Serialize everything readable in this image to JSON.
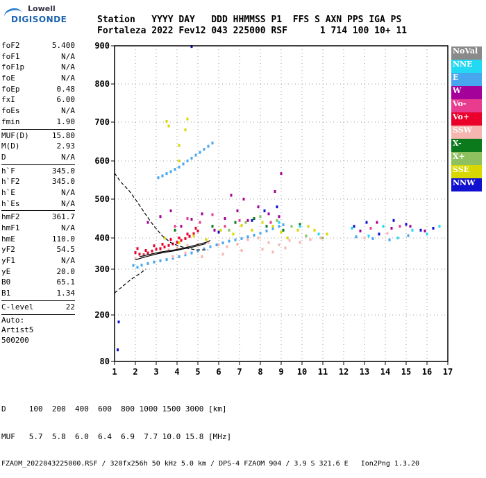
{
  "logo": {
    "top": "Lowell",
    "main": "DIGISONDE"
  },
  "header": {
    "labels": "Station   YYYY DAY   DDD HHMMSS P1  FFS S AXN PPS IGA PS",
    "values": "Fortaleza 2022 Fev12 043 225000 RSF      1 714 100 10+ 11"
  },
  "params": [
    {
      "label": "foF2",
      "value": "5.400"
    },
    {
      "label": "foF1",
      "value": "N/A"
    },
    {
      "label": "foF1p",
      "value": "N/A"
    },
    {
      "label": "foE",
      "value": "N/A"
    },
    {
      "label": "foEp",
      "value": "0.48"
    },
    {
      "label": "fxI",
      "value": "6.00"
    },
    {
      "label": "foEs",
      "value": "N/A"
    },
    {
      "label": "fmin",
      "value": "1.90"
    },
    {
      "sep": true
    },
    {
      "label": "MUF(D)",
      "value": "15.80"
    },
    {
      "label": "M(D)",
      "value": "2.93"
    },
    {
      "label": "D",
      "value": "N/A"
    },
    {
      "sep": true
    },
    {
      "label": "h`F",
      "value": "345.0"
    },
    {
      "label": "h`F2",
      "value": "345.0"
    },
    {
      "label": "h`E",
      "value": "N/A"
    },
    {
      "label": "h`Es",
      "value": "N/A"
    },
    {
      "sep": true
    },
    {
      "label": "hmF2",
      "value": "361.7"
    },
    {
      "label": "hmF1",
      "value": "N/A"
    },
    {
      "label": "hmE",
      "value": "110.0"
    },
    {
      "label": "yF2",
      "value": "54.5"
    },
    {
      "label": "yF1",
      "value": "N/A"
    },
    {
      "label": "yE",
      "value": "20.0"
    },
    {
      "label": "B0",
      "value": "65.1"
    },
    {
      "label": "B1",
      "value": "1.34"
    },
    {
      "sep": true
    },
    {
      "label": "C-level",
      "value": "22"
    },
    {
      "sep": true
    },
    {
      "free": "Auto:"
    },
    {
      "free": "Artist5"
    },
    {
      "free": "500200"
    }
  ],
  "legend": [
    {
      "label": "NoVal",
      "color": "#8a8a8a"
    },
    {
      "label": "NNE",
      "color": "#22d8f2"
    },
    {
      "label": "E",
      "color": "#47a6ee"
    },
    {
      "label": "W",
      "color": "#a4009a"
    },
    {
      "label": "Vo-",
      "color": "#e83c8e"
    },
    {
      "label": "Vo+",
      "color": "#ea002a"
    },
    {
      "label": "SSW",
      "color": "#f5b5b0"
    },
    {
      "label": "X-",
      "color": "#0a7a1c"
    },
    {
      "label": "X+",
      "color": "#8ec060"
    },
    {
      "label": "SSE",
      "color": "#d8d800"
    },
    {
      "label": "NNW",
      "color": "#1010d0"
    }
  ],
  "footer": {
    "d_row": "D     100  200  400  600  800 1000 1500 3000 [km]",
    "muf_row": "MUF   5.7  5.8  6.0  6.4  6.9  7.7 10.0 15.8 [MHz]",
    "file_row": "FZAOM_2022043225000.RSF / 320fx256h 50 kHz 5.0 km / DPS-4 FZAOM 904 / 3.9 S 321.6 E   Ion2Png 1.3.20"
  },
  "chart_data": {
    "type": "scatter",
    "x_ticks": [
      "1",
      "2",
      "3",
      "4",
      "5",
      "6",
      "7",
      "8",
      "9",
      "10",
      "11",
      "12",
      "13",
      "14",
      "15",
      "16",
      "17"
    ],
    "y_ticks": [
      "80",
      "200",
      "300",
      "400",
      "500",
      "600",
      "700",
      "800",
      "900"
    ],
    "xlim": [
      1,
      17
    ],
    "ylim": [
      80,
      900
    ],
    "grid": "dotted",
    "legend_position": "right",
    "series": [
      {
        "name": "E",
        "color": "#47a6ee",
        "points": [
          [
            1.9,
            312
          ],
          [
            2.1,
            306
          ],
          [
            2.3,
            313
          ],
          [
            2.6,
            318
          ],
          [
            2.9,
            323
          ],
          [
            3.2,
            327
          ],
          [
            3.5,
            331
          ],
          [
            3.8,
            335
          ],
          [
            4.1,
            340
          ],
          [
            4.4,
            346
          ],
          [
            4.7,
            352
          ],
          [
            5.0,
            358
          ],
          [
            5.3,
            365
          ],
          [
            5.6,
            372
          ],
          [
            5.9,
            378
          ],
          [
            6.2,
            384
          ],
          [
            6.5,
            390
          ],
          [
            6.8,
            394
          ],
          [
            7.1,
            398
          ],
          [
            7.4,
            403
          ],
          [
            7.7,
            407
          ],
          [
            8.0,
            412
          ],
          [
            8.3,
            418
          ],
          [
            8.6,
            424
          ],
          [
            8.9,
            430
          ],
          [
            9.1,
            434
          ],
          [
            3.1,
            556
          ],
          [
            3.3,
            561
          ],
          [
            3.5,
            567
          ],
          [
            3.7,
            572
          ],
          [
            3.9,
            578
          ],
          [
            4.1,
            584
          ],
          [
            4.3,
            592
          ],
          [
            4.5,
            600
          ],
          [
            4.7,
            607
          ],
          [
            4.9,
            615
          ],
          [
            5.1,
            622
          ],
          [
            5.3,
            630
          ],
          [
            5.5,
            638
          ],
          [
            5.7,
            646
          ],
          [
            12.6,
            403
          ],
          [
            13.4,
            398
          ],
          [
            14.2,
            394
          ],
          [
            15.1,
            406
          ]
        ]
      },
      {
        "name": "Vo+",
        "color": "#ea002a",
        "points": [
          [
            2.0,
            353
          ],
          [
            2.2,
            348
          ],
          [
            2.4,
            346
          ],
          [
            2.6,
            352
          ],
          [
            2.8,
            358
          ],
          [
            3.0,
            364
          ],
          [
            3.2,
            366
          ],
          [
            3.4,
            371
          ],
          [
            3.6,
            376
          ],
          [
            3.8,
            381
          ],
          [
            4.0,
            386
          ],
          [
            4.2,
            392
          ],
          [
            4.4,
            398
          ],
          [
            4.6,
            404
          ],
          [
            4.8,
            411
          ],
          [
            5.0,
            418
          ],
          [
            2.1,
            366
          ],
          [
            2.5,
            360
          ],
          [
            2.9,
            375
          ],
          [
            3.3,
            380
          ],
          [
            3.7,
            395
          ],
          [
            4.1,
            400
          ],
          [
            4.5,
            410
          ],
          [
            4.9,
            425
          ]
        ]
      },
      {
        "name": "W",
        "color": "#a4009a",
        "points": [
          [
            2.6,
            440
          ],
          [
            3.2,
            455
          ],
          [
            3.7,
            470
          ],
          [
            4.2,
            430
          ],
          [
            4.7,
            448
          ],
          [
            5.2,
            462
          ],
          [
            5.8,
            420
          ],
          [
            6.3,
            450
          ],
          [
            6.9,
            470
          ],
          [
            7.4,
            445
          ],
          [
            7.9,
            480
          ],
          [
            8.4,
            462
          ],
          [
            8.9,
            455
          ],
          [
            12.8,
            418
          ],
          [
            13.6,
            440
          ],
          [
            14.3,
            425
          ],
          [
            15.2,
            430
          ],
          [
            15.9,
            418
          ],
          [
            6.6,
            510
          ],
          [
            7.2,
            500
          ],
          [
            8.7,
            520
          ],
          [
            9.0,
            567
          ]
        ]
      },
      {
        "name": "SSW",
        "color": "#f5b5b0",
        "points": [
          [
            2.0,
            335
          ],
          [
            2.4,
            342
          ],
          [
            2.8,
            350
          ],
          [
            3.2,
            355
          ],
          [
            3.6,
            362
          ],
          [
            4.0,
            368
          ],
          [
            4.5,
            376
          ],
          [
            5.0,
            380
          ],
          [
            5.5,
            385
          ],
          [
            6.0,
            378
          ],
          [
            6.4,
            372
          ],
          [
            6.9,
            380
          ],
          [
            7.4,
            395
          ],
          [
            7.9,
            400
          ],
          [
            8.4,
            385
          ],
          [
            8.9,
            378
          ],
          [
            9.4,
            392
          ],
          [
            9.9,
            386
          ],
          [
            10.4,
            395
          ],
          [
            10.9,
            400
          ],
          [
            3.8,
            340
          ],
          [
            4.4,
            352
          ],
          [
            5.2,
            340
          ],
          [
            6.2,
            348
          ],
          [
            7.1,
            360
          ],
          [
            8.1,
            364
          ],
          [
            8.6,
            355
          ],
          [
            9.2,
            368
          ],
          [
            13.0,
            400
          ],
          [
            14.1,
            412
          ]
        ]
      },
      {
        "name": "SSE",
        "color": "#d8d800",
        "points": [
          [
            3.4,
            400
          ],
          [
            4.1,
            385
          ],
          [
            4.8,
            405
          ],
          [
            5.4,
            395
          ],
          [
            6.1,
            420
          ],
          [
            6.7,
            410
          ],
          [
            7.1,
            432
          ],
          [
            7.6,
            420
          ],
          [
            8.1,
            440
          ],
          [
            8.6,
            430
          ],
          [
            9.0,
            415
          ],
          [
            9.3,
            400
          ],
          [
            9.8,
            420
          ],
          [
            10.3,
            430
          ],
          [
            10.6,
            420
          ],
          [
            11.2,
            410
          ],
          [
            3.5,
            702
          ],
          [
            3.6,
            690
          ],
          [
            4.1,
            600
          ],
          [
            4.4,
            680
          ],
          [
            4.5,
            708
          ],
          [
            4.1,
            640
          ]
        ]
      },
      {
        "name": "X-",
        "color": "#0a7a1c",
        "points": [
          [
            3.9,
            420
          ],
          [
            5.7,
            430
          ],
          [
            6.8,
            440
          ],
          [
            7.7,
            450
          ],
          [
            8.3,
            430
          ],
          [
            9.1,
            420
          ],
          [
            9.9,
            435
          ]
        ]
      },
      {
        "name": "NNW",
        "color": "#1010d0",
        "points": [
          [
            1.2,
            182
          ],
          [
            1.15,
            110
          ],
          [
            6.0,
            415
          ],
          [
            7.6,
            445
          ],
          [
            8.2,
            470
          ],
          [
            8.8,
            480
          ],
          [
            12.5,
            430
          ],
          [
            13.1,
            440
          ],
          [
            13.7,
            410
          ],
          [
            14.4,
            445
          ],
          [
            15.0,
            435
          ],
          [
            15.7,
            420
          ],
          [
            16.3,
            425
          ],
          [
            4.7,
            898
          ]
        ]
      },
      {
        "name": "NNE",
        "color": "#22d8f2",
        "points": [
          [
            12.4,
            425
          ],
          [
            13.2,
            405
          ],
          [
            13.9,
            430
          ],
          [
            14.6,
            400
          ],
          [
            15.3,
            420
          ],
          [
            16.0,
            410
          ],
          [
            16.6,
            430
          ],
          [
            9.9,
            430
          ],
          [
            10.8,
            410
          ],
          [
            8.9,
            440
          ]
        ]
      },
      {
        "name": "Vo-",
        "color": "#e83c8e",
        "points": [
          [
            3.9,
            430
          ],
          [
            4.5,
            450
          ],
          [
            5.1,
            440
          ],
          [
            5.7,
            460
          ],
          [
            6.3,
            430
          ],
          [
            7.0,
            445
          ],
          [
            8.5,
            440
          ],
          [
            13.3,
            425
          ],
          [
            14.7,
            430
          ]
        ]
      },
      {
        "name": "X+",
        "color": "#8ec060",
        "points": [
          [
            6.5,
            420
          ],
          [
            7.3,
            440
          ],
          [
            8.0,
            455
          ],
          [
            8.8,
            445
          ],
          [
            9.5,
            430
          ],
          [
            10.2,
            405
          ],
          [
            11.0,
            400
          ]
        ]
      }
    ],
    "lines": [
      {
        "name": "ordinary trace",
        "color": "#000000",
        "style": "solid",
        "points": [
          [
            2.0,
            330
          ],
          [
            2.3,
            336
          ],
          [
            2.7,
            343
          ],
          [
            3.1,
            350
          ],
          [
            3.5,
            355
          ],
          [
            3.9,
            359
          ],
          [
            4.3,
            365
          ],
          [
            4.7,
            370
          ],
          [
            5.1,
            377
          ],
          [
            5.4,
            382
          ]
        ]
      },
      {
        "name": "profile",
        "color": "#000000",
        "style": "dashed",
        "points": [
          [
            1.0,
            568
          ],
          [
            1.3,
            545
          ],
          [
            1.7,
            522
          ],
          [
            2.1,
            492
          ],
          [
            2.5,
            460
          ],
          [
            2.9,
            430
          ],
          [
            3.3,
            405
          ],
          [
            3.7,
            385
          ],
          [
            4.1,
            374
          ],
          [
            4.5,
            367
          ],
          [
            4.9,
            362
          ],
          [
            5.3,
            361.7
          ],
          [
            5.5,
            362
          ]
        ]
      },
      {
        "name": "profile-lower",
        "color": "#000000",
        "style": "dashed",
        "points": [
          [
            1.0,
            248
          ],
          [
            1.4,
            263
          ],
          [
            1.8,
            278
          ],
          [
            2.2,
            290
          ],
          [
            2.5,
            300
          ]
        ]
      },
      {
        "name": "bottomside",
        "color": "#000000",
        "style": "solid",
        "points": [
          [
            2.2,
            340
          ],
          [
            2.6,
            346
          ],
          [
            3.0,
            352
          ],
          [
            3.4,
            357
          ],
          [
            3.8,
            361
          ],
          [
            4.2,
            366
          ],
          [
            4.6,
            372
          ],
          [
            5.0,
            379
          ],
          [
            5.4,
            386
          ],
          [
            5.6,
            392
          ]
        ]
      }
    ]
  }
}
